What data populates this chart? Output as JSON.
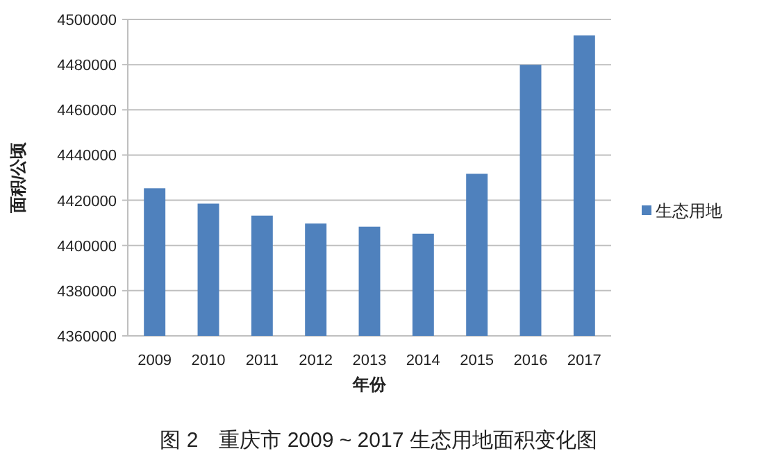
{
  "chart_data": {
    "type": "bar",
    "title": "图 2　重庆市 2009 ~ 2017 生态用地面积变化图",
    "xlabel": "年份",
    "ylabel": "面积/公顷",
    "categories": [
      "2009",
      "2010",
      "2011",
      "2012",
      "2013",
      "2014",
      "2015",
      "2016",
      "2017"
    ],
    "series": [
      {
        "name": "生态用地",
        "color": "#4f81bd",
        "values": [
          4425300,
          4418500,
          4413200,
          4409700,
          4408300,
          4405200,
          4431700,
          4479900,
          4492900
        ]
      }
    ],
    "ylim": [
      4360000,
      4500000
    ],
    "yticks": [
      4360000,
      4380000,
      4400000,
      4420000,
      4440000,
      4460000,
      4480000,
      4500000
    ],
    "grid": "y",
    "legend": "right"
  }
}
